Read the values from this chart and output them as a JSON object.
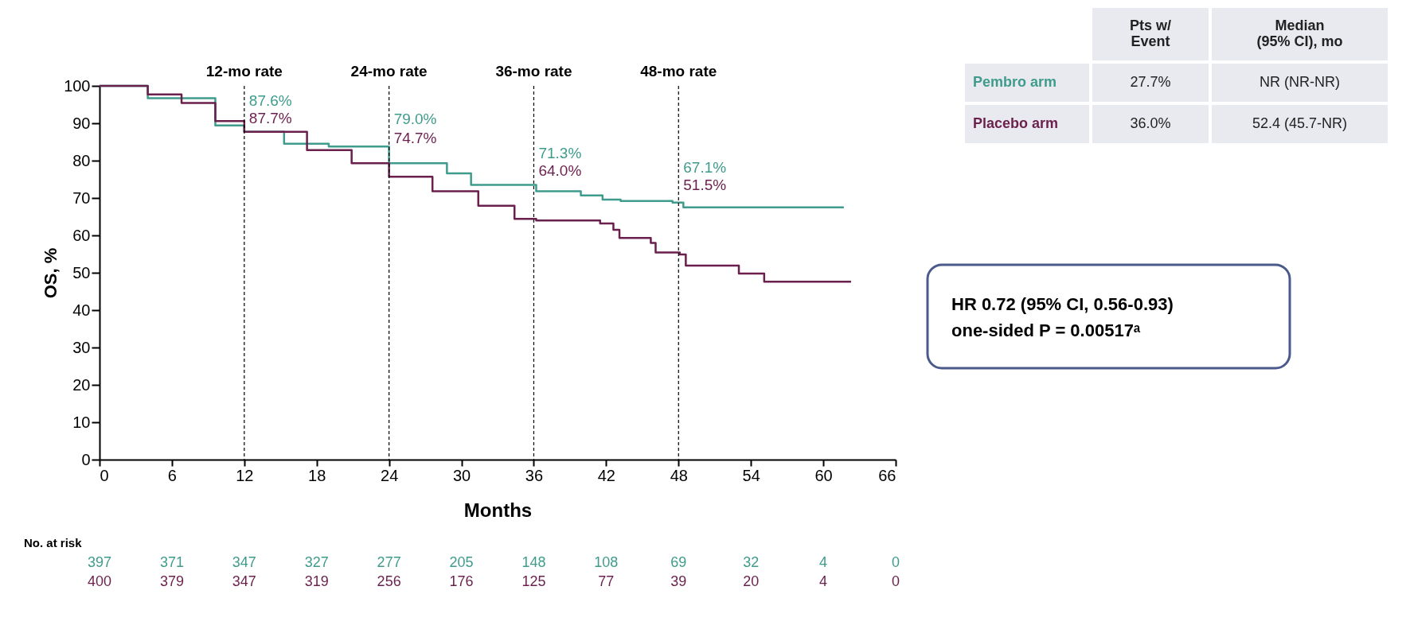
{
  "chart_data": {
    "type": "step",
    "xlabel": "Months",
    "ylabel": "OS, %",
    "xlim": [
      0,
      66
    ],
    "xticks": [
      0,
      6,
      12,
      18,
      24,
      30,
      36,
      42,
      48,
      54,
      60,
      66
    ],
    "ylim": [
      0,
      100
    ],
    "yticks": [
      0,
      10,
      20,
      30,
      40,
      50,
      60,
      70,
      80,
      90,
      100
    ],
    "grid": false,
    "line_style": "solid",
    "marker": "none",
    "series": [
      {
        "name": "Pembro arm",
        "color": "#3f9c8c",
        "x": [
          0,
          4,
          9.6,
          12,
          15.3,
          19,
          24,
          28.8,
          30.8,
          36.2,
          39.9,
          41.7,
          43.2,
          47.5,
          48.4,
          61.7
        ],
        "values": [
          100,
          96.7,
          89.4,
          87.7,
          84.5,
          83.8,
          79.3,
          76.6,
          73.5,
          71.8,
          70.7,
          69.6,
          69.2,
          68.8,
          67.5,
          67.5
        ]
      },
      {
        "name": "Placebo arm",
        "color": "#6a1f4c",
        "x": [
          0,
          4,
          6.8,
          9.6,
          12,
          17.2,
          20.9,
          24,
          27.6,
          31.4,
          34.4,
          36.2,
          41.5,
          42.6,
          43.1,
          45.7,
          46.1,
          48.1,
          48.6,
          53,
          55.1,
          62.3
        ],
        "values": [
          100,
          97.7,
          95.4,
          90.6,
          87.7,
          82.8,
          79.3,
          75.7,
          71.8,
          67.9,
          64.4,
          64.0,
          63.2,
          61.5,
          59.3,
          58,
          55.4,
          54.9,
          51.9,
          49.8,
          47.6,
          47.6
        ]
      }
    ],
    "ref_lines": [
      {
        "axis": "x",
        "value": 12,
        "label": "12-mo rate",
        "line_style": "dashed"
      },
      {
        "axis": "x",
        "value": 24,
        "label": "24-mo rate",
        "line_style": "dashed"
      },
      {
        "axis": "x",
        "value": 36,
        "label": "36-mo rate",
        "line_style": "dashed"
      },
      {
        "axis": "x",
        "value": 48,
        "label": "48-mo rate",
        "line_style": "dashed"
      }
    ],
    "annotations": [
      {
        "text": "87.6%",
        "x": 12,
        "y": 96
      },
      {
        "text": "87.7%",
        "x": 12,
        "y": 91.3
      },
      {
        "text": "79.0%",
        "x": 24,
        "y": 91
      },
      {
        "text": "74.7%",
        "x": 24,
        "y": 86
      },
      {
        "text": "71.3%",
        "x": 36,
        "y": 82
      },
      {
        "text": "64.0%",
        "x": 36,
        "y": 77.3
      },
      {
        "text": "67.1%",
        "x": 48,
        "y": 78
      },
      {
        "text": "51.5%",
        "x": 48,
        "y": 73.3
      },
      "Pts w/\nEvent",
      "Median\n(95% CI), mo",
      "27.7%",
      "NR (NR-NR)",
      "36.0%",
      "52.4 (45.7-NR)",
      "HR 0.72 (95% CI, 0.56-0.93)",
      "one-sided P = 0.00517ᵃ",
      "No. at risk",
      "397",
      "371",
      "347",
      "327",
      "277",
      "205",
      "148",
      "108",
      "69",
      "32",
      "4",
      "0",
      "400",
      "379",
      "347",
      "319",
      "256",
      "176",
      "125",
      "77",
      "39",
      "20",
      "4",
      "0"
    ]
  }
}
